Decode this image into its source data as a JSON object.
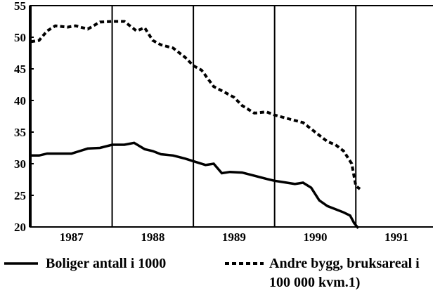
{
  "chart_data": {
    "type": "line",
    "xlim": [
      1987,
      1991.95
    ],
    "ylim": [
      20,
      55
    ],
    "yticks": [
      20,
      25,
      30,
      35,
      40,
      45,
      50,
      55
    ],
    "xticks": [
      {
        "value": 1987.5,
        "label": "1987"
      },
      {
        "value": 1988.5,
        "label": "1988"
      },
      {
        "value": 1989.5,
        "label": "1989"
      },
      {
        "value": 1990.5,
        "label": "1990"
      },
      {
        "value": 1991.5,
        "label": "1991"
      }
    ],
    "x_gridlines": [
      1987,
      1988,
      1989,
      1990,
      1991
    ],
    "series": [
      {
        "name": "Boliger antall i 1000",
        "color": "#000",
        "dash": "solid",
        "x": [
          1987,
          1987.1,
          1987.2,
          1987.35,
          1987.5,
          1987.6,
          1987.7,
          1987.85,
          1988,
          1988.15,
          1988.27,
          1988.4,
          1988.5,
          1988.6,
          1988.75,
          1988.9,
          1989,
          1989.15,
          1989.25,
          1989.35,
          1989.45,
          1989.6,
          1989.75,
          1989.9,
          1990,
          1990.15,
          1990.25,
          1990.35,
          1990.45,
          1990.55,
          1990.65,
          1990.75,
          1990.85,
          1990.93,
          1990.98,
          1991.03
        ],
        "values": [
          31.3,
          31.3,
          31.6,
          31.6,
          31.6,
          32,
          32.4,
          32.5,
          33,
          33,
          33.3,
          32.3,
          32,
          31.5,
          31.3,
          30.8,
          30.4,
          29.8,
          30,
          28.5,
          28.7,
          28.6,
          28.1,
          27.6,
          27.3,
          27,
          26.8,
          27,
          26.2,
          24.2,
          23.3,
          22.8,
          22.3,
          21.8,
          20.6,
          19.8
        ]
      },
      {
        "name": "Andre bygg, bruksareal i 100 000  kvm.1)",
        "color": "#000",
        "dash": "dashed",
        "x": [
          1987,
          1987.1,
          1987.2,
          1987.3,
          1987.45,
          1987.55,
          1987.7,
          1987.85,
          1988,
          1988.15,
          1988.3,
          1988.4,
          1988.5,
          1988.6,
          1988.75,
          1988.9,
          1989,
          1989.1,
          1989.25,
          1989.4,
          1989.5,
          1989.6,
          1989.75,
          1989.9,
          1990,
          1990.2,
          1990.35,
          1990.5,
          1990.65,
          1990.75,
          1990.85,
          1990.95,
          1991,
          1991.05
        ],
        "values": [
          49.3,
          49.5,
          51,
          51.8,
          51.6,
          51.8,
          51.3,
          52.4,
          52.5,
          52.5,
          51,
          51.5,
          49.5,
          48.8,
          48.3,
          46.8,
          45.5,
          44.8,
          42.2,
          41.2,
          40.5,
          39.2,
          38,
          38.2,
          37.7,
          37,
          36.5,
          35,
          33.5,
          33,
          32,
          30,
          26.5,
          26
        ]
      }
    ]
  }
}
